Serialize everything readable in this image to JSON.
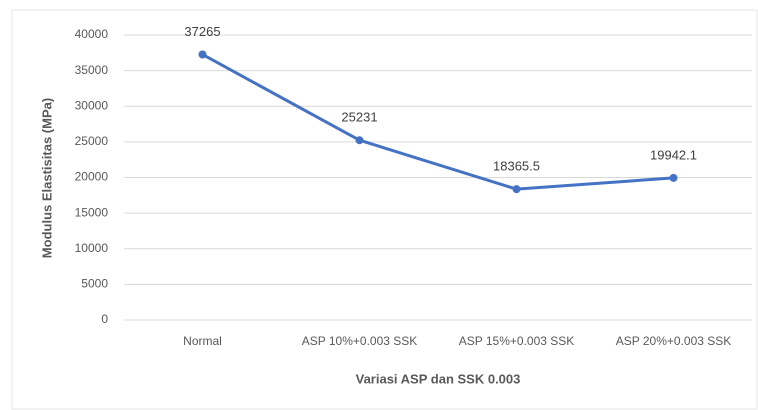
{
  "chart_data": {
    "type": "line",
    "categories": [
      "Normal",
      "ASP 10%+0.003 SSK",
      "ASP 15%+0.003 SSK",
      "ASP 20%+0.003 SSK"
    ],
    "series": [
      {
        "name": "Modulus Elastisitas",
        "color": "#4472c4",
        "values": [
          37265,
          25231,
          18365.5,
          19942.1
        ]
      }
    ],
    "xlabel": "Variasi ASP dan SSK 0.003",
    "ylabel": "Modulus Elastisitas (MPa)",
    "ylim": [
      0,
      40000
    ],
    "yticks": [
      0,
      5000,
      10000,
      15000,
      20000,
      25000,
      30000,
      35000,
      40000
    ],
    "grid": true
  }
}
